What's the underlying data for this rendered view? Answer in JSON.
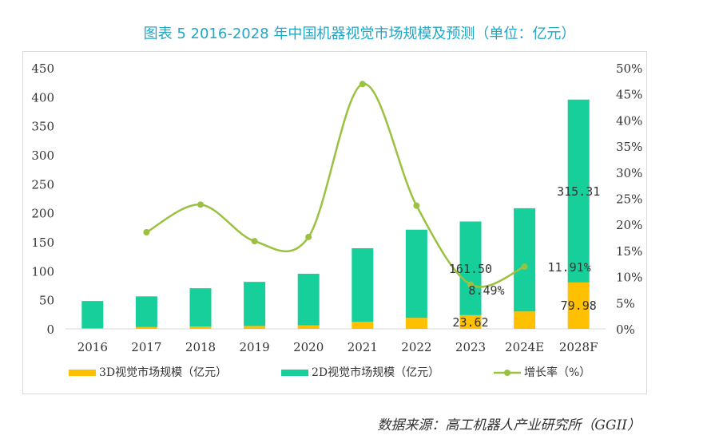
{
  "title": "图表 5   2016-2028 年中国机器视觉市场规模及预测（单位：亿元）",
  "source": "数据来源：高工机器人产业研究所（GGII）",
  "colors": {
    "series3d": "#ffc000",
    "series2d": "#17cf9a",
    "growth": "#9bc140",
    "title": "#21a6c7"
  },
  "chart_data": {
    "type": "bar",
    "stacked": true,
    "categories": [
      "2016",
      "2017",
      "2018",
      "2019",
      "2020",
      "2021",
      "2022",
      "2023",
      "2024E",
      "2028F"
    ],
    "series": [
      {
        "name": "3D视觉市场规模（亿元）",
        "values": [
          1,
          3,
          4,
          5,
          6,
          12,
          19,
          23.62,
          30,
          79.98
        ]
      },
      {
        "name": "2D视觉市场规模（亿元）",
        "values": [
          47,
          53,
          66,
          76,
          89,
          127,
          152,
          161.5,
          178,
          315.31
        ]
      },
      {
        "name": "增长率（%）",
        "type": "line",
        "axis": "right",
        "values": [
          null,
          18.5,
          23.8,
          16.8,
          17.6,
          46.9,
          23.6,
          8.49,
          11.91,
          null
        ]
      }
    ],
    "data_labels": [
      "315.31",
      "161.50",
      "8.49%",
      "11.91%",
      "23.62",
      "79.98"
    ],
    "y_left": {
      "ticks": [
        "0",
        "50",
        "100",
        "150",
        "200",
        "250",
        "300",
        "350",
        "400",
        "450"
      ],
      "ylim": [
        0,
        450
      ]
    },
    "y_right": {
      "ticks": [
        "0%",
        "5%",
        "10%",
        "15%",
        "20%",
        "25%",
        "30%",
        "35%",
        "40%",
        "45%",
        "50%"
      ],
      "ylim": [
        0,
        50
      ]
    },
    "grid": false,
    "legend": "bottom"
  }
}
